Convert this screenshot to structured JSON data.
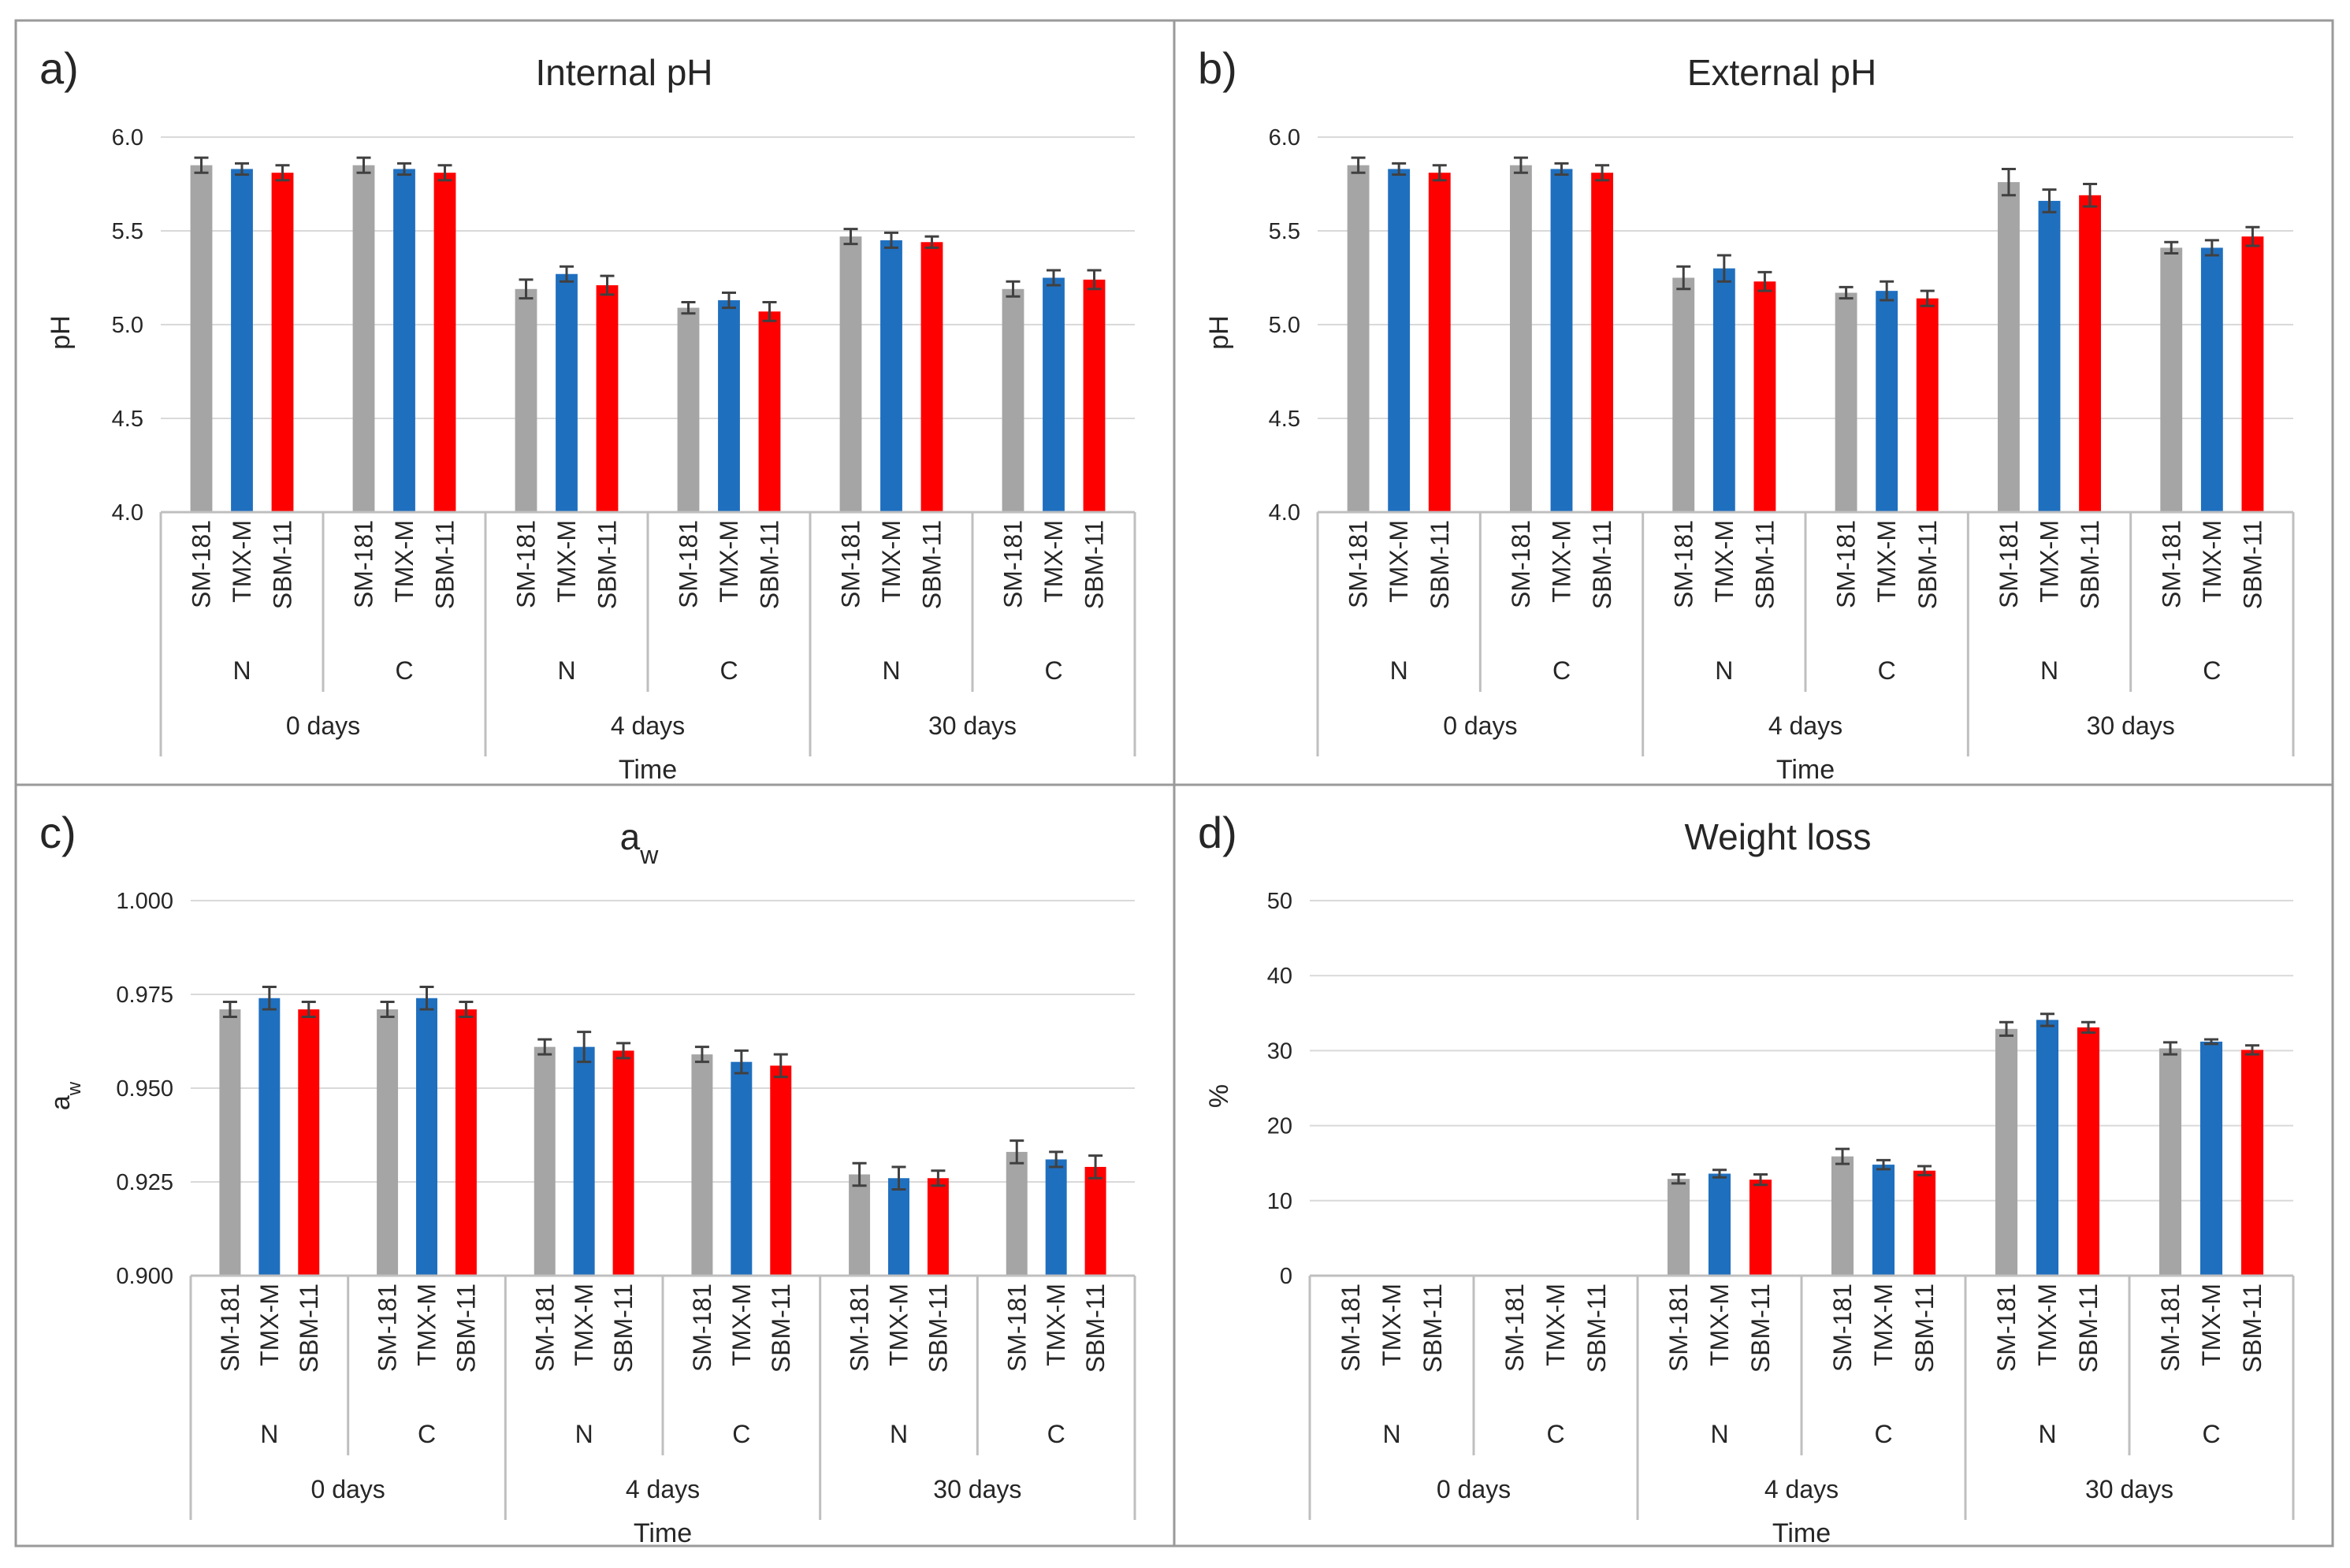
{
  "colors": {
    "SM-181": "#a5a5a5",
    "TMX-M": "#1f6fbf",
    "SBM-11": "#ff0000",
    "grid": "#d9d9d9",
    "frame": "#7f7f7f"
  },
  "chart_data": [
    {
      "type": "bar",
      "letter": "a)",
      "title": "Internal pH",
      "title_sub": "",
      "xlabel": "Time",
      "ylabel": "pH",
      "ylabel_sub": "",
      "ylim": [
        4.0,
        6.0
      ],
      "yticks": [
        "4.0",
        "4.5",
        "5.0",
        "5.5",
        "6.0"
      ],
      "grid": true,
      "times": [
        "0 days",
        "4 days",
        "30 days"
      ],
      "conditions": [
        "N",
        "C"
      ],
      "series_names": [
        "SM-181",
        "TMX-M",
        "SBM-11"
      ],
      "series": [
        {
          "name": "SM-181",
          "values": [
            5.85,
            5.85,
            5.19,
            5.09,
            5.47,
            5.19
          ],
          "errors": [
            0.04,
            0.04,
            0.05,
            0.03,
            0.04,
            0.04
          ]
        },
        {
          "name": "TMX-M",
          "values": [
            5.83,
            5.83,
            5.27,
            5.13,
            5.45,
            5.25
          ],
          "errors": [
            0.03,
            0.03,
            0.04,
            0.04,
            0.04,
            0.04
          ]
        },
        {
          "name": "SBM-11",
          "values": [
            5.81,
            5.81,
            5.21,
            5.07,
            5.44,
            5.24
          ],
          "errors": [
            0.04,
            0.04,
            0.05,
            0.05,
            0.03,
            0.05
          ]
        }
      ]
    },
    {
      "type": "bar",
      "letter": "b)",
      "title": "External pH",
      "title_sub": "",
      "xlabel": "Time",
      "ylabel": "pH",
      "ylabel_sub": "",
      "ylim": [
        4.0,
        6.0
      ],
      "yticks": [
        "4.0",
        "4.5",
        "5.0",
        "5.5",
        "6.0"
      ],
      "grid": true,
      "times": [
        "0 days",
        "4 days",
        "30 days"
      ],
      "conditions": [
        "N",
        "C"
      ],
      "series_names": [
        "SM-181",
        "TMX-M",
        "SBM-11"
      ],
      "series": [
        {
          "name": "SM-181",
          "values": [
            5.85,
            5.85,
            5.25,
            5.17,
            5.76,
            5.41
          ],
          "errors": [
            0.04,
            0.04,
            0.06,
            0.03,
            0.07,
            0.03
          ]
        },
        {
          "name": "TMX-M",
          "values": [
            5.83,
            5.83,
            5.3,
            5.18,
            5.66,
            5.41
          ],
          "errors": [
            0.03,
            0.03,
            0.07,
            0.05,
            0.06,
            0.04
          ]
        },
        {
          "name": "SBM-11",
          "values": [
            5.81,
            5.81,
            5.23,
            5.14,
            5.69,
            5.47
          ],
          "errors": [
            0.04,
            0.04,
            0.05,
            0.04,
            0.06,
            0.05
          ]
        }
      ]
    },
    {
      "type": "bar",
      "letter": "c)",
      "title": "a",
      "title_sub": "w",
      "xlabel": "Time",
      "ylabel": "a",
      "ylabel_sub": "w",
      "ylim": [
        0.9,
        1.0
      ],
      "yticks": [
        "0.900",
        "0.925",
        "0.950",
        "0.975",
        "1.000"
      ],
      "grid": true,
      "times": [
        "0 days",
        "4 days",
        "30 days"
      ],
      "conditions": [
        "N",
        "C"
      ],
      "series_names": [
        "SM-181",
        "TMX-M",
        "SBM-11"
      ],
      "series": [
        {
          "name": "SM-181",
          "values": [
            0.971,
            0.971,
            0.961,
            0.959,
            0.927,
            0.933
          ],
          "errors": [
            0.002,
            0.002,
            0.002,
            0.002,
            0.003,
            0.003
          ]
        },
        {
          "name": "TMX-M",
          "values": [
            0.974,
            0.974,
            0.961,
            0.957,
            0.926,
            0.931
          ],
          "errors": [
            0.003,
            0.003,
            0.004,
            0.003,
            0.003,
            0.002
          ]
        },
        {
          "name": "SBM-11",
          "values": [
            0.971,
            0.971,
            0.96,
            0.956,
            0.926,
            0.929
          ],
          "errors": [
            0.002,
            0.002,
            0.002,
            0.003,
            0.002,
            0.003
          ]
        }
      ]
    },
    {
      "type": "bar",
      "letter": "d)",
      "title": "Weight loss",
      "title_sub": "",
      "xlabel": "Time",
      "ylabel": "%",
      "ylabel_sub": "",
      "ylim": [
        0,
        50
      ],
      "yticks": [
        "0",
        "10",
        "20",
        "30",
        "40",
        "50"
      ],
      "grid": true,
      "times": [
        "0 days",
        "4 days",
        "30 days"
      ],
      "conditions": [
        "N",
        "C"
      ],
      "series_names": [
        "SM-181",
        "TMX-M",
        "SBM-11"
      ],
      "series": [
        {
          "name": "SM-181",
          "values": [
            0,
            0,
            12.9,
            15.9,
            32.9,
            30.3
          ],
          "errors": [
            0,
            0,
            0.6,
            1.0,
            0.9,
            0.8
          ]
        },
        {
          "name": "TMX-M",
          "values": [
            0,
            0,
            13.6,
            14.8,
            34.1,
            31.2
          ],
          "errors": [
            0,
            0,
            0.5,
            0.6,
            0.8,
            0.3
          ]
        },
        {
          "name": "SBM-11",
          "values": [
            0,
            0,
            12.8,
            14.0,
            33.1,
            30.1
          ],
          "errors": [
            0,
            0,
            0.7,
            0.6,
            0.7,
            0.6
          ]
        }
      ]
    }
  ]
}
